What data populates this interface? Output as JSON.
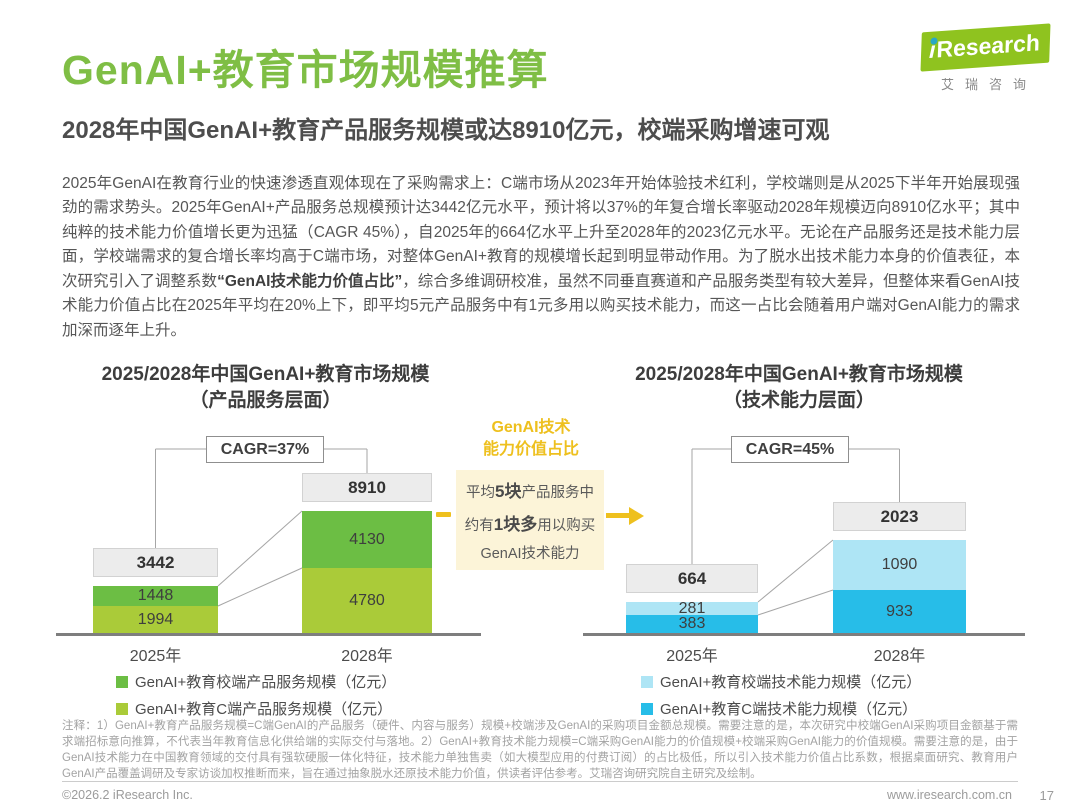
{
  "page": {
    "title": "GenAI+教育市场规模推算",
    "subtitle": "2028年中国GenAI+教育产品服务规模或达8910亿元，校端采购增速可观",
    "page_number": "17"
  },
  "logo": {
    "brand_i": "i",
    "brand_rest": "Research",
    "cn": "艾瑞咨询"
  },
  "body": {
    "p1": "2025年GenAI在教育行业的快速渗透直观体现在了采购需求上：C端市场从2023年开始体验技术红利，学校端则是从2025下半年开始展现强劲的需求势头。2025年GenAI+产品服务总规模预计达3442亿元水平，预计将以37%的年复合增长率驱动2028年规模迈向8910亿水平；其中纯粹的技术能力价值增长更为迅猛（CAGR 45%），自2025年的664亿水平上升至2028年的2023亿元水平。无论在产品服务还是技术能力层面，学校端需求的复合增长率均高于C端市场，对整体GenAI+教育的规模增长起到明显带动作用。为了脱水出技术能力本身的价值表征，本次研究引入了调整系数",
    "bold": "“GenAI技术能力价值占比”",
    "p2": "，综合多维调研校准，虽然不同垂直赛道和产品服务类型有较大差异，但整体来看GenAI技术能力价值占比在2025年平均在20%上下，即平均5元产品服务中有1元多用以购买技术能力，而这一占比会随着用户端对GenAI能力的需求加深而逐年上升。"
  },
  "middle": {
    "title_line1": "GenAI技术",
    "title_line2": "能力价值占比",
    "line1_pre": "平均",
    "line1_bold": "5块",
    "line1_post": "产品服务中",
    "line2_pre": "约有",
    "line2_bold": "1块多",
    "line2_post": "用以购买",
    "line3": "GenAI技术能力"
  },
  "chart_data": [
    {
      "type": "bar",
      "title": "2025/2028年中国GenAI+教育市场规模",
      "subtitle": "（产品服务层面）",
      "cagr_label": "CAGR=37%",
      "categories": [
        "2025年",
        "2028年"
      ],
      "totals": [
        3442,
        8910
      ],
      "series": [
        {
          "name": "GenAI+教育校端产品服务规模（亿元）",
          "color": "#6cbe44",
          "values": [
            1448,
            4130
          ]
        },
        {
          "name": "GenAI+教育C端产品服务规模（亿元）",
          "color": "#aacb39",
          "values": [
            1994,
            4780
          ]
        }
      ],
      "legend_position": "bottom"
    },
    {
      "type": "bar",
      "title": "2025/2028年中国GenAI+教育市场规模",
      "subtitle": "（技术能力层面）",
      "cagr_label": "CAGR=45%",
      "categories": [
        "2025年",
        "2028年"
      ],
      "totals": [
        664,
        2023
      ],
      "series": [
        {
          "name": "GenAI+教育校端技术能力规模（亿元）",
          "color": "#aee5f5",
          "values": [
            281,
            1090
          ]
        },
        {
          "name": "GenAI+教育C端技术能力规模（亿元）",
          "color": "#27bde8",
          "values": [
            383,
            933
          ]
        }
      ],
      "legend_position": "bottom"
    }
  ],
  "footnote": "注释：1）GenAI+教育产品服务规模=C端GenAI的产品服务（硬件、内容与服务）规模+校端涉及GenAI的采购项目金额总规模。需要注意的是，本次研究中校端GenAI采购项目金额基于需求端招标意向推算，不代表当年教育信息化供给端的实际交付与落地。2）GenAI+教育技术能力规模=C端采购GenAI能力的价值规模+校端采购GenAI能力的价值规模。需要注意的是，由于GenAI技术能力在中国教育领域的交付具有强软硬服一体化特征，技术能力单独售卖（如大模型应用的付费订阅）的占比极低，所以引入技术能力价值占比系数，根据桌面研究、教育用户GenAI产品覆盖调研及专家访谈加权推断而来，旨在通过抽象脱水还原技术能力价值，供读者评估参考。艾瑞咨询研究院自主研究及绘制。",
  "footer": {
    "copyright": "©2026.2 iResearch Inc.",
    "website": "www.iresearch.com.cn"
  },
  "colors": {
    "accent_green": "#7fbe45",
    "logo_green": "#8fc31f",
    "bar_green_dark": "#6cbe44",
    "bar_green_light": "#aacb39",
    "bar_blue_light": "#aee5f5",
    "bar_blue": "#27bde8",
    "gold": "#eec01e",
    "cream_box": "#fcf4d8"
  }
}
